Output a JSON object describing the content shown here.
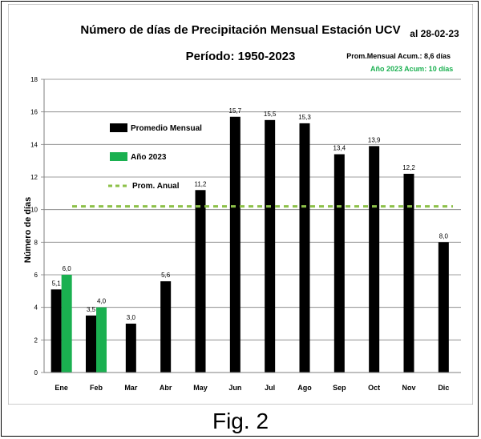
{
  "caption": "Fig. 2",
  "chart_data": {
    "type": "bar",
    "title": "Número de días de Precipitación Mensual Estación UCV",
    "subtitle": "Período: 1950-2023",
    "date_note": "al 28-02-23",
    "stat_1": "Prom.Mensual  Acum.: 8,6 días",
    "stat_2": "Año 2023 Acum: 10 días",
    "ylabel": "Número de días",
    "xlabel": "",
    "ylim": [
      0,
      18
    ],
    "yticks": [
      0,
      2,
      4,
      6,
      8,
      10,
      12,
      14,
      16,
      18
    ],
    "grid": true,
    "legend_position": "left",
    "categories": [
      "Ene",
      "Feb",
      "Mar",
      "Abr",
      "May",
      "Jun",
      "Jul",
      "Ago",
      "Sep",
      "Oct",
      "Nov",
      "Dic"
    ],
    "series": [
      {
        "name": "Promedio Mensual",
        "color": "#000000",
        "values": [
          5.1,
          3.5,
          3.0,
          5.6,
          11.2,
          15.7,
          15.5,
          15.3,
          13.4,
          13.9,
          12.2,
          8.0
        ],
        "labels": [
          "5,1",
          "3,5",
          "3,0",
          "5,6",
          "11,2",
          "15,7",
          "15,5",
          "15,3",
          "13,4",
          "13,9",
          "12,2",
          "8,0"
        ]
      },
      {
        "name": "Año 2023",
        "color": "#1ab050",
        "values": [
          6.0,
          4.0,
          null,
          null,
          null,
          null,
          null,
          null,
          null,
          null,
          null,
          null
        ],
        "labels": [
          "6,0",
          "4,0",
          "",
          "",
          "",
          "",
          "",
          "",
          "",
          "",
          "",
          ""
        ]
      }
    ],
    "reference_line": {
      "name": "Prom. Anual",
      "value": 10.2,
      "color": "#8dc149"
    }
  }
}
